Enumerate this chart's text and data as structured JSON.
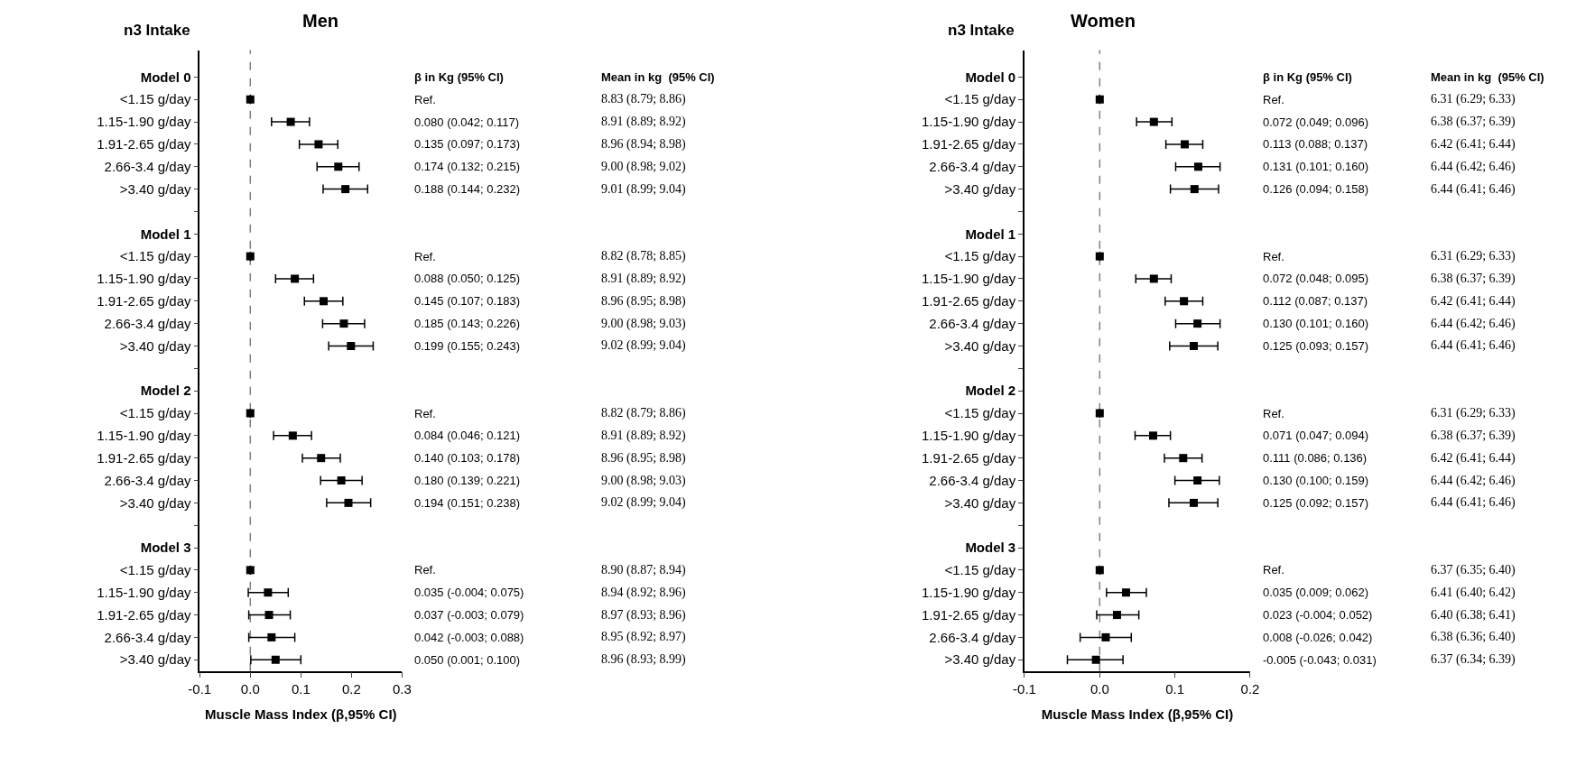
{
  "chart_data": [
    {
      "type": "scatter",
      "orientation": "horizontal",
      "title": "Men",
      "ylabel": "n3 Intake",
      "xlabel": "Muscle Mass Index (β,95% CI)",
      "categories": [
        "Model 0",
        "<1.15 g/day",
        "1.15-1.90 g/day",
        "1.91-2.65 g/day",
        "2.66-3.4 g/day",
        ">3.40 g/day",
        null,
        "Model 1",
        "<1.15 g/day",
        "1.15-1.90 g/day",
        "1.91-2.65 g/day",
        "2.66-3.4 g/day",
        ">3.40 g/day",
        null,
        "Model 2",
        "<1.15 g/day",
        "1.15-1.90 g/day",
        "1.91-2.65 g/day",
        "2.66-3.4 g/day",
        ">3.40 g/day",
        null,
        "Model 3",
        "<1.15 g/day",
        "1.15-1.90 g/day",
        "1.91-2.65 g/day",
        "2.66-3.4 g/day",
        ">3.40 g/day"
      ],
      "values": [
        null,
        0,
        0.08,
        0.135,
        0.174,
        0.188,
        null,
        null,
        0,
        0.088,
        0.145,
        0.185,
        0.199,
        null,
        null,
        0,
        0.084,
        0.14,
        0.18,
        0.194,
        null,
        null,
        0,
        0.035,
        0.037,
        0.042,
        0.05
      ],
      "errors": [
        null,
        null,
        [
          0.042,
          0.117
        ],
        [
          0.097,
          0.173
        ],
        [
          0.132,
          0.215
        ],
        [
          0.144,
          0.232
        ],
        null,
        null,
        null,
        [
          0.05,
          0.125
        ],
        [
          0.107,
          0.183
        ],
        [
          0.143,
          0.226
        ],
        [
          0.155,
          0.243
        ],
        null,
        null,
        null,
        [
          0.046,
          0.121
        ],
        [
          0.103,
          0.178
        ],
        [
          0.139,
          0.221
        ],
        [
          0.151,
          0.238
        ],
        null,
        null,
        null,
        [
          -0.004,
          0.075
        ],
        [
          -0.003,
          0.079
        ],
        [
          -0.003,
          0.088
        ],
        [
          0.001,
          0.1
        ]
      ],
      "annotations": [
        "β in Kg (95% CI)",
        "Mean in kg  (95% CI)",
        "Ref.",
        "0.080 (0.042; 0.117)",
        "0.135 (0.097; 0.173)",
        "0.174 (0.132; 0.215)",
        "0.188 (0.144; 0.232)",
        "Ref.",
        "0.088 (0.050; 0.125)",
        "0.145 (0.107; 0.183)",
        "0.185 (0.143; 0.226)",
        "0.199 (0.155; 0.243)",
        "Ref.",
        "0.084 (0.046; 0.121)",
        "0.140 (0.103; 0.178)",
        "0.180 (0.139; 0.221)",
        "0.194 (0.151; 0.238)",
        "Ref.",
        "0.035 (-0.004; 0.075)",
        "0.037 (-0.003; 0.079)",
        "0.042 (-0.003; 0.088)",
        "0.050 (0.001; 0.100)",
        "8.83 (8.79; 8.86)",
        "8.91 (8.89; 8.92)",
        "8.96 (8.94; 8.98)",
        "9.00 (8.98; 9.02)",
        "9.01 (8.99; 9.04)",
        "8.82 (8.78; 8.85)",
        "8.91 (8.89; 8.92)",
        "8.96 (8.95; 8.98)",
        "9.00 (8.98; 9.03)",
        "9.02 (8.99; 9.04)",
        "8.82 (8.79; 8.86)",
        "8.91 (8.89; 8.92)",
        "8.96 (8.95; 8.98)",
        "9.00 (8.98; 9.03)",
        "9.02 (8.99; 9.04)",
        "8.90 (8.87; 8.94)",
        "8.94 (8.92; 8.96)",
        "8.97 (8.93; 8.96)",
        "8.95 (8.92; 8.97)",
        "8.96 (8.93; 8.99)"
      ],
      "xlim": [
        -0.1,
        0.3
      ],
      "xticks": [
        -0.1,
        {
          "value": 0,
          "label": "0.0"
        },
        0.1,
        0.2,
        0.3
      ],
      "color": "#000000",
      "marker": "square",
      "grid": false,
      "ref_lines": [
        {
          "axis": "x",
          "value": 0,
          "label": null,
          "color": "#808080",
          "line_style": "dashed"
        }
      ]
    },
    {
      "type": "scatter",
      "orientation": "horizontal",
      "title": "Women",
      "ylabel": "n3 Intake",
      "xlabel": "Muscle Mass Index (β,95% CI)",
      "categories": [
        "Model 0",
        "<1.15 g/day",
        "1.15-1.90 g/day",
        "1.91-2.65 g/day",
        "2.66-3.4 g/day",
        ">3.40 g/day",
        null,
        "Model 1",
        "<1.15 g/day",
        "1.15-1.90 g/day",
        "1.91-2.65 g/day",
        "2.66-3.4 g/day",
        ">3.40 g/day",
        null,
        "Model 2",
        "<1.15 g/day",
        "1.15-1.90 g/day",
        "1.91-2.65 g/day",
        "2.66-3.4 g/day",
        ">3.40 g/day",
        null,
        "Model 3",
        "<1.15 g/day",
        "1.15-1.90 g/day",
        "1.91-2.65 g/day",
        "2.66-3.4 g/day",
        ">3.40 g/day"
      ],
      "values": [
        null,
        0,
        0.072,
        0.113,
        0.131,
        0.126,
        null,
        null,
        0,
        0.072,
        0.112,
        0.13,
        0.125,
        null,
        null,
        0,
        0.071,
        0.111,
        0.13,
        0.125,
        null,
        null,
        0,
        0.035,
        0.023,
        0.008,
        -0.005
      ],
      "errors": [
        null,
        null,
        [
          0.049,
          0.096
        ],
        [
          0.088,
          0.137
        ],
        [
          0.101,
          0.16
        ],
        [
          0.094,
          0.158
        ],
        null,
        null,
        null,
        [
          0.048,
          0.095
        ],
        [
          0.087,
          0.137
        ],
        [
          0.101,
          0.16
        ],
        [
          0.093,
          0.157
        ],
        null,
        null,
        null,
        [
          0.047,
          0.094
        ],
        [
          0.086,
          0.136
        ],
        [
          0.1,
          0.159
        ],
        [
          0.092,
          0.157
        ],
        null,
        null,
        null,
        [
          0.009,
          0.062
        ],
        [
          -0.004,
          0.052
        ],
        [
          -0.026,
          0.042
        ],
        [
          -0.043,
          0.031
        ]
      ],
      "annotations": [
        "β in Kg (95% CI)",
        "Mean in kg  (95% CI)",
        "Ref.",
        "0.072 (0.049; 0.096)",
        "0.113 (0.088; 0.137)",
        "0.131 (0.101; 0.160)",
        "0.126 (0.094; 0.158)",
        "Ref.",
        "0.072 (0.048; 0.095)",
        "0.112 (0.087; 0.137)",
        "0.130 (0.101; 0.160)",
        "0.125 (0.093; 0.157)",
        "Ref.",
        "0.071 (0.047; 0.094)",
        "0.111 (0.086; 0.136)",
        "0.130 (0.100; 0.159)",
        "0.125 (0.092; 0.157)",
        "Ref.",
        "0.035 (0.009; 0.062)",
        "0.023 (-0.004; 0.052)",
        "0.008 (-0.026; 0.042)",
        "-0.005 (-0.043; 0.031)",
        "6.31 (6.29; 6.33)",
        "6.38 (6.37; 6.39)",
        "6.42 (6.41; 6.44)",
        "6.44 (6.42; 6.46)",
        "6.44 (6.41; 6.46)",
        "6.31 (6.29; 6.33)",
        "6.38 (6.37; 6.39)",
        "6.42 (6.41; 6.44)",
        "6.44 (6.42; 6.46)",
        "6.44 (6.41; 6.46)",
        "6.31 (6.29; 6.33)",
        "6.38 (6.37; 6.39)",
        "6.42 (6.41; 6.44)",
        "6.44 (6.42; 6.46)",
        "6.44 (6.41; 6.46)",
        "6.37 (6.35; 6.40)",
        "6.41 (6.40; 6.42)",
        "6.40 (6.38; 6.41)",
        "6.38 (6.36; 6.40)",
        "6.37 (6.34; 6.39)"
      ],
      "xlim": [
        -0.1,
        0.2
      ],
      "xticks": [
        -0.1,
        {
          "value": 0,
          "label": "0.0"
        },
        0.1,
        0.2
      ],
      "color": "#000000",
      "marker": "square",
      "grid": false,
      "ref_lines": [
        {
          "axis": "x",
          "value": 0,
          "label": null,
          "color": "#808080",
          "line_style": "dashed"
        }
      ]
    }
  ]
}
